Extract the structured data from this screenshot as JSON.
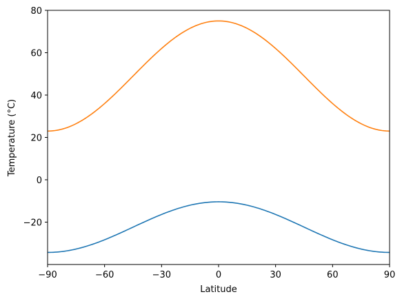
{
  "chart_data": {
    "type": "line",
    "title": "",
    "xlabel": "Latitude",
    "ylabel": "Temperature (°C)",
    "xlim": [
      -90,
      90
    ],
    "ylim": [
      -40,
      80
    ],
    "xticks": [
      -90,
      -60,
      -30,
      0,
      30,
      60,
      90
    ],
    "yticks": [
      -20,
      0,
      20,
      40,
      60,
      80
    ],
    "xtick_labels": [
      "−90",
      "−60",
      "−30",
      "0",
      "30",
      "60",
      "90"
    ],
    "ytick_labels": [
      "−20",
      "0",
      "20",
      "40",
      "60",
      "80"
    ],
    "grid": false,
    "legend": "none",
    "x": [
      -90,
      -75,
      -60,
      -45,
      -30,
      -15,
      0,
      15,
      30,
      45,
      60,
      75,
      90
    ],
    "series": [
      {
        "color": "#1f77b4",
        "values": [
          -34.3,
          -32.7,
          -28.3,
          -22.4,
          -16.4,
          -12.0,
          -10.4,
          -12.0,
          -16.4,
          -22.4,
          -28.3,
          -32.7,
          -34.3
        ]
      },
      {
        "color": "#ff7f0e",
        "values": [
          23.0,
          26.5,
          36.0,
          49.0,
          62.0,
          71.5,
          75.0,
          71.5,
          62.0,
          49.0,
          36.0,
          26.5,
          23.0
        ]
      }
    ]
  }
}
